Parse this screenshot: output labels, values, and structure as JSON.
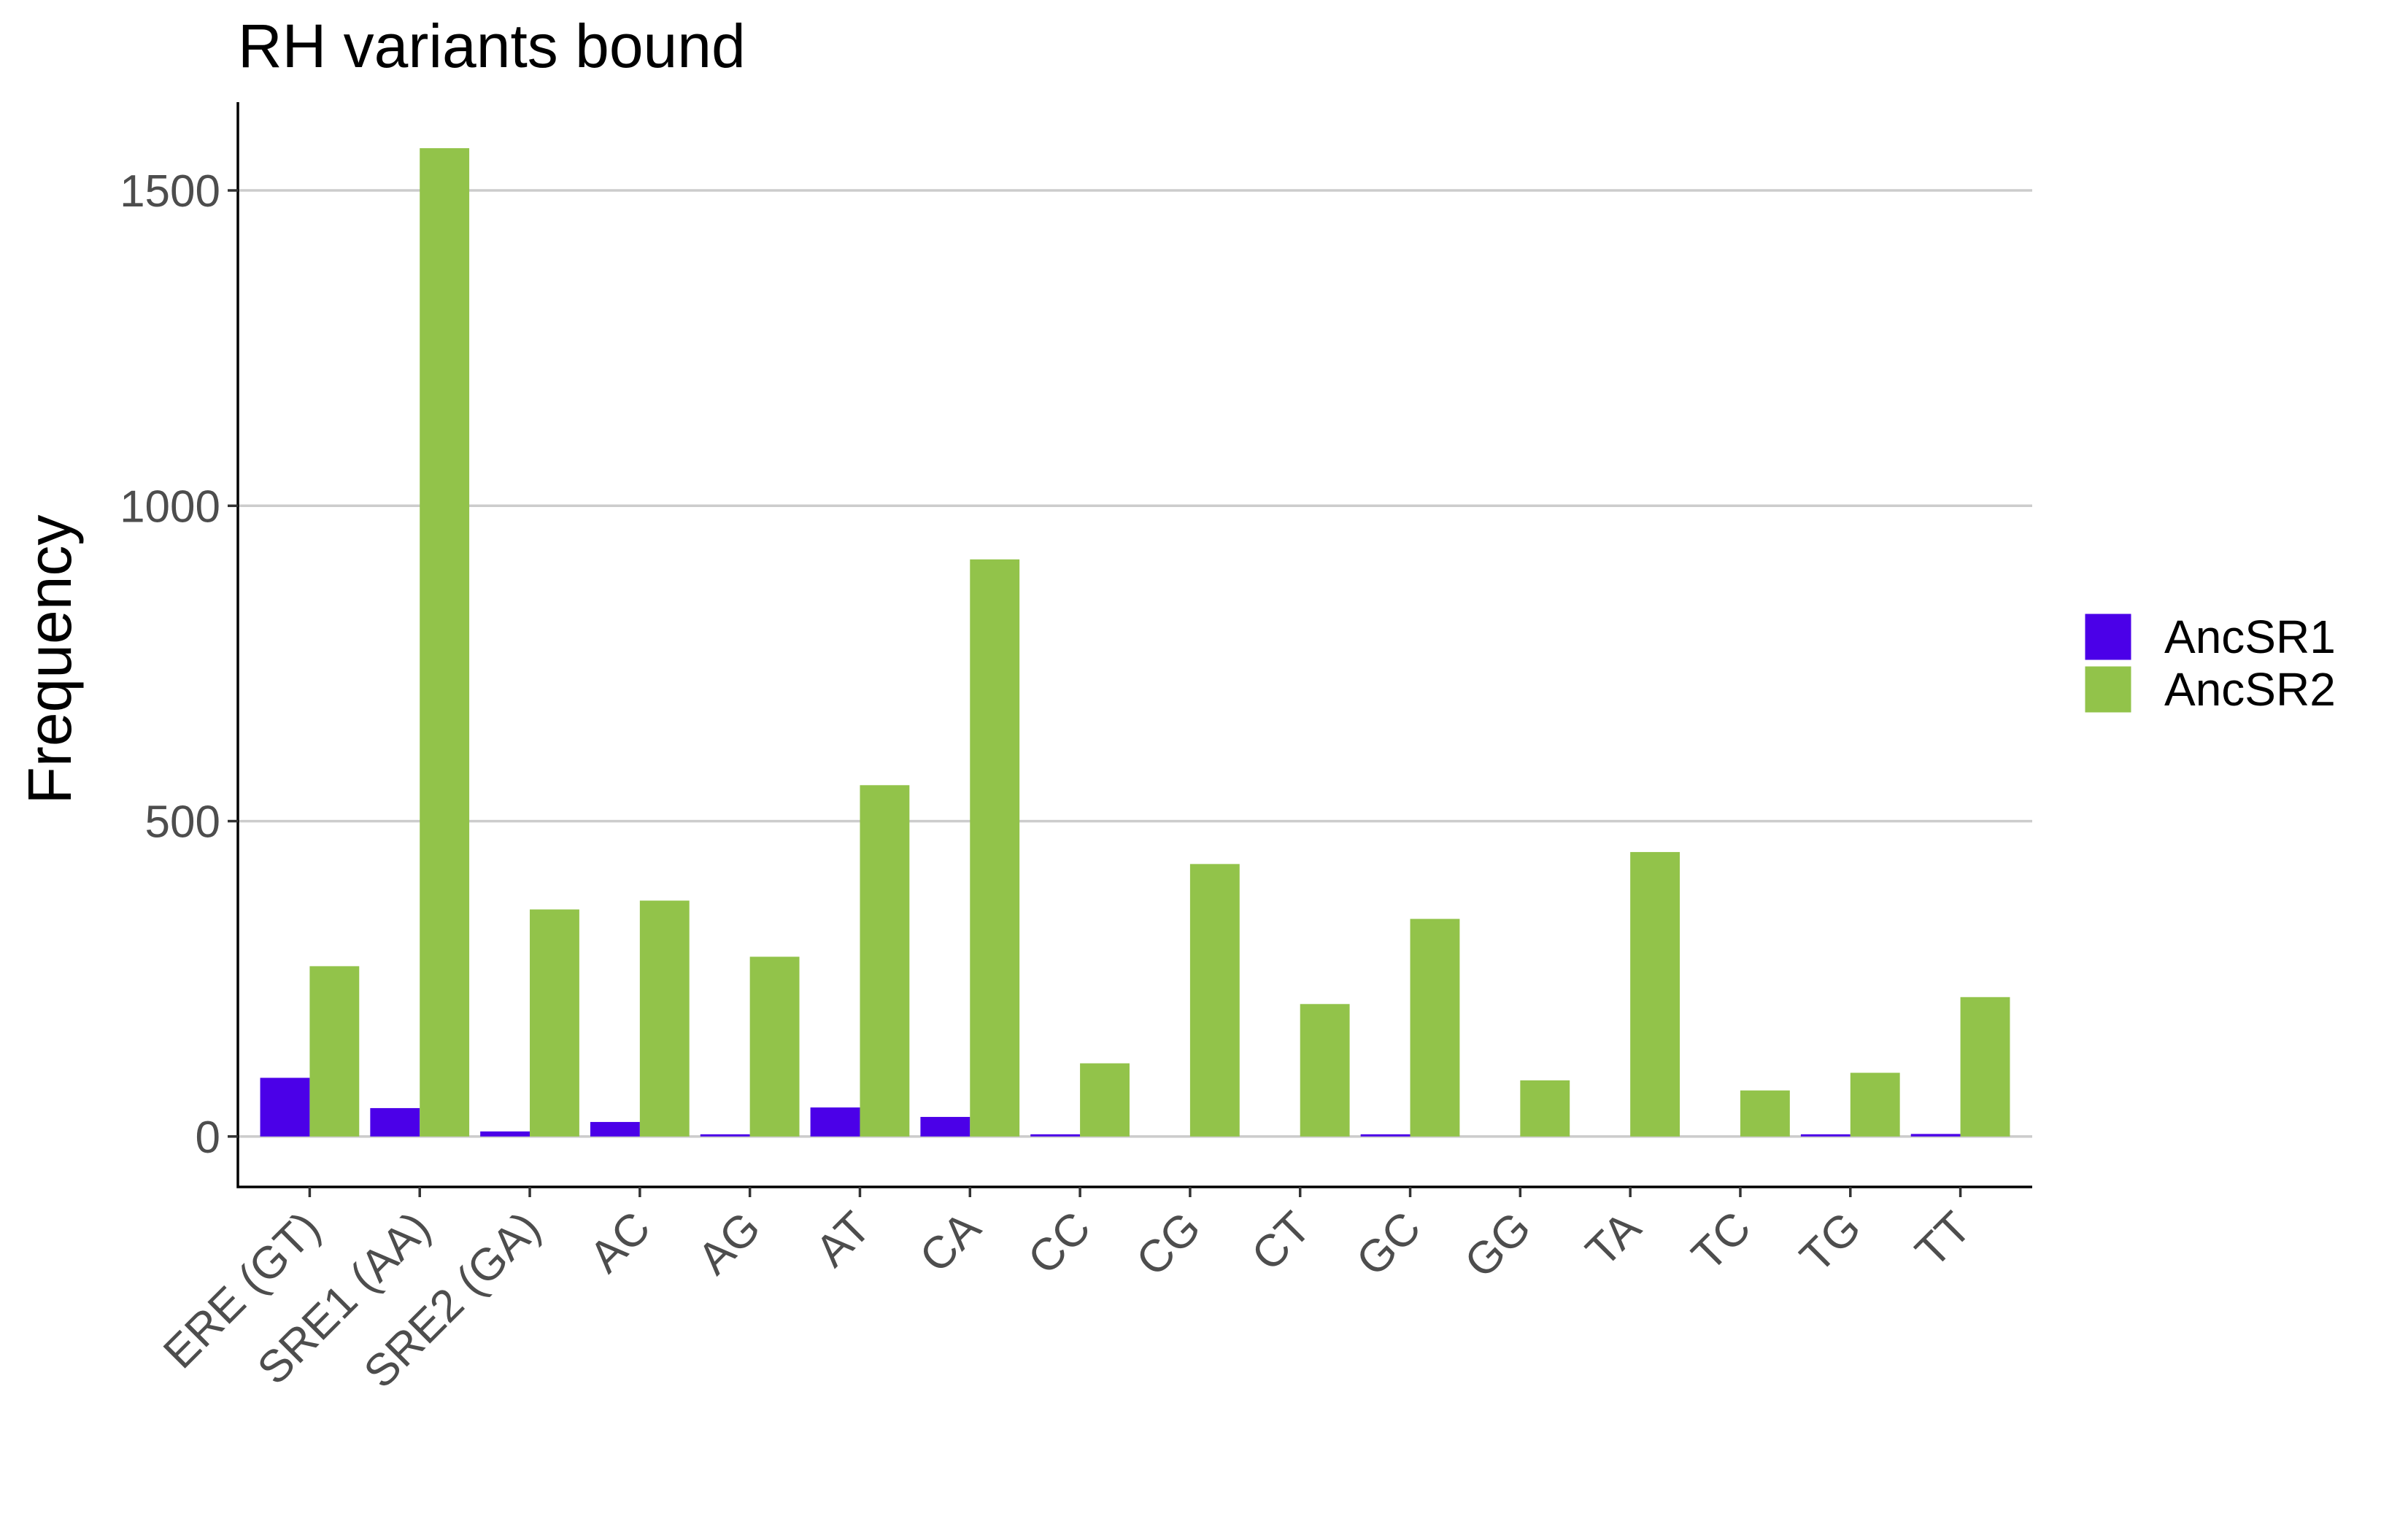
{
  "chart_data": {
    "type": "bar",
    "title": "RH variants bound",
    "xlabel": "",
    "ylabel": "Frequency",
    "ylim": [
      -80,
      1640
    ],
    "yticks": [
      0,
      500,
      1000,
      1500
    ],
    "grid": "horizontal major",
    "legend_position": "right",
    "categories": [
      "ERE (GT)",
      "SRE1 (AA)",
      "SRE2 (GA)",
      "AC",
      "AG",
      "AT",
      "CA",
      "CC",
      "CG",
      "CT",
      "GC",
      "GG",
      "TA",
      "TC",
      "TG",
      "TT"
    ],
    "series": [
      {
        "name": "AncSR1",
        "color": "#4B00E8",
        "values": [
          93,
          45,
          8,
          23,
          3,
          46,
          31,
          2,
          0,
          0,
          1,
          0,
          0,
          0,
          1,
          4
        ]
      },
      {
        "name": "AncSR2",
        "color": "#92C34A",
        "values": [
          270,
          1567,
          360,
          374,
          285,
          557,
          915,
          116,
          432,
          210,
          345,
          89,
          451,
          73,
          101,
          221
        ]
      }
    ]
  }
}
